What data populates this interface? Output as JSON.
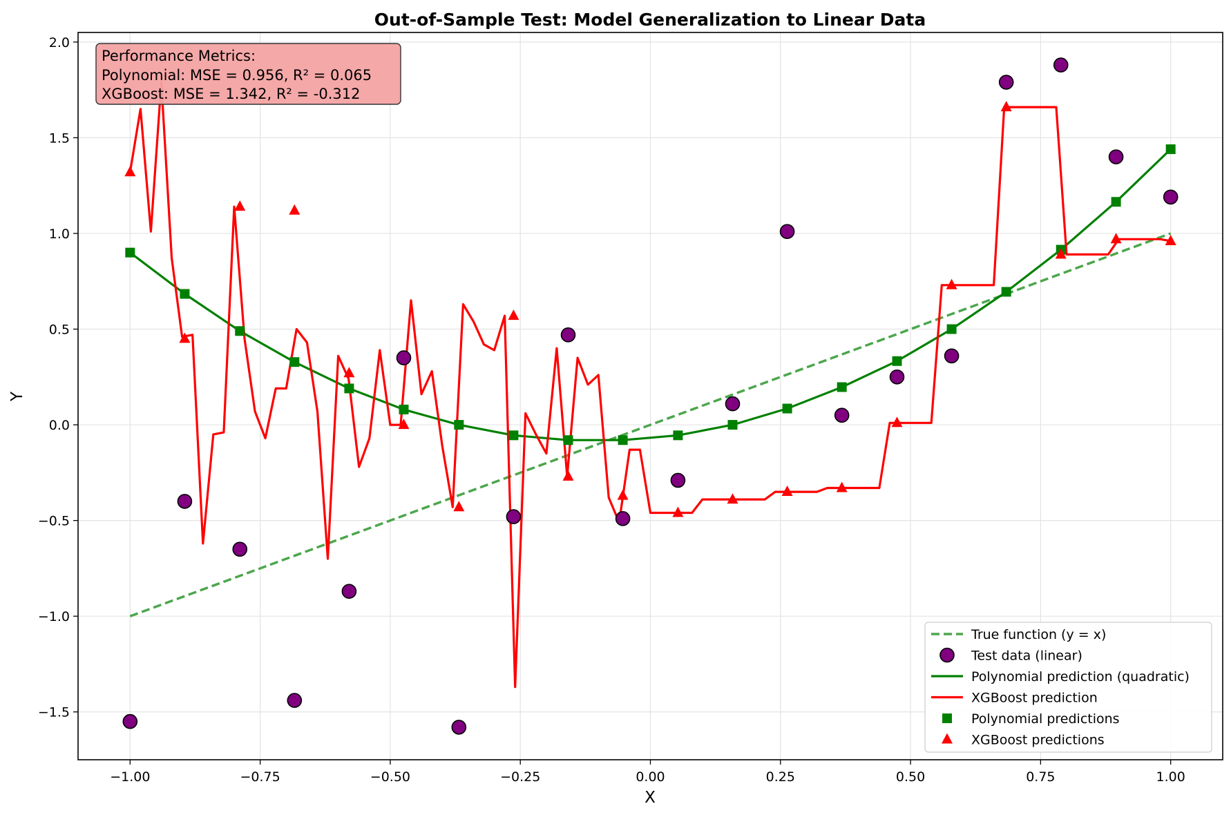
{
  "chart_data": {
    "type": "line",
    "title": "Out-of-Sample Test: Model Generalization to Linear Data",
    "xlabel": "X",
    "ylabel": "Y",
    "xlim": [
      -1.1,
      1.1
    ],
    "ylim": [
      -1.75,
      2.05
    ],
    "xticks": [
      -1.0,
      -0.75,
      -0.5,
      -0.25,
      0.0,
      0.25,
      0.5,
      0.75,
      1.0
    ],
    "xtick_labels": [
      "−1.00",
      "−0.75",
      "−0.50",
      "−0.25",
      "0.00",
      "0.25",
      "0.50",
      "0.75",
      "1.00"
    ],
    "yticks": [
      -1.5,
      -1.0,
      -0.5,
      0.0,
      0.5,
      1.0,
      1.5,
      2.0
    ],
    "ytick_labels": [
      "−1.5",
      "−1.0",
      "−0.5",
      "0.0",
      "0.5",
      "1.0",
      "1.5",
      "2.0"
    ],
    "grid": true,
    "legend_position": "lower right",
    "metrics_box": {
      "lines": [
        "Performance Metrics:",
        "Polynomial: MSE = 0.956, R² = 0.065",
        "XGBoost: MSE = 1.342, R² = -0.312"
      ],
      "background_color": "#f4a3a3"
    },
    "test_x": [
      -1.0,
      -0.895,
      -0.789,
      -0.684,
      -0.579,
      -0.474,
      -0.368,
      -0.263,
      -0.158,
      -0.053,
      0.053,
      0.158,
      0.263,
      0.368,
      0.474,
      0.579,
      0.684,
      0.789,
      0.895,
      1.0
    ],
    "series": [
      {
        "name": "True function (y = x)",
        "kind": "dashed-line",
        "color": "#4ca64c",
        "x": [
          -1.0,
          1.0
        ],
        "y": [
          -1.0,
          1.0
        ]
      },
      {
        "name": "Test data (linear)",
        "kind": "circle-markers",
        "color": "#800080",
        "y": [
          -1.55,
          -0.4,
          -0.65,
          -1.44,
          -0.87,
          0.35,
          -1.58,
          -0.48,
          0.47,
          -0.49,
          -0.29,
          0.11,
          1.01,
          0.05,
          0.25,
          0.36,
          1.79,
          1.88,
          1.4,
          1.19
        ]
      },
      {
        "name": "Polynomial prediction (quadratic)",
        "kind": "line",
        "color": "#008000",
        "y": [
          0.9,
          0.684,
          0.49,
          0.328,
          0.19,
          0.08,
          0.0,
          -0.055,
          -0.08,
          -0.08,
          -0.055,
          0.0,
          0.085,
          0.197,
          0.333,
          0.5,
          0.695,
          0.915,
          1.165,
          1.44
        ]
      },
      {
        "name": "XGBoost prediction",
        "kind": "line",
        "color": "#ff0000",
        "x": [
          -1.0,
          -0.98,
          -0.96,
          -0.94,
          -0.92,
          -0.9,
          -0.88,
          -0.86,
          -0.84,
          -0.82,
          -0.8,
          -0.78,
          -0.76,
          -0.74,
          -0.72,
          -0.7,
          -0.68,
          -0.66,
          -0.64,
          -0.62,
          -0.6,
          -0.58,
          -0.56,
          -0.54,
          -0.52,
          -0.5,
          -0.48,
          -0.46,
          -0.44,
          -0.42,
          -0.4,
          -0.38,
          -0.36,
          -0.34,
          -0.32,
          -0.3,
          -0.28,
          -0.26,
          -0.24,
          -0.22,
          -0.2,
          -0.18,
          -0.16,
          -0.14,
          -0.12,
          -0.1,
          -0.08,
          -0.06,
          -0.04,
          -0.02,
          0.0,
          0.02,
          0.04,
          0.06,
          0.08,
          0.1,
          0.12,
          0.14,
          0.16,
          0.18,
          0.2,
          0.22,
          0.24,
          0.26,
          0.28,
          0.3,
          0.32,
          0.34,
          0.36,
          0.38,
          0.4,
          0.42,
          0.44,
          0.46,
          0.48,
          0.5,
          0.52,
          0.54,
          0.56,
          0.58,
          0.6,
          0.62,
          0.64,
          0.66,
          0.68,
          0.7,
          0.72,
          0.74,
          0.76,
          0.78,
          0.8,
          0.82,
          0.84,
          0.86,
          0.88,
          0.9,
          0.92,
          0.94,
          0.96,
          0.98,
          1.0
        ],
        "y": [
          1.32,
          1.65,
          1.01,
          1.79,
          0.87,
          0.46,
          0.47,
          -0.62,
          -0.05,
          -0.04,
          1.14,
          0.45,
          0.07,
          -0.07,
          0.19,
          0.19,
          0.5,
          0.43,
          0.07,
          -0.7,
          0.36,
          0.24,
          -0.22,
          -0.07,
          0.39,
          0.0,
          0.0,
          0.65,
          0.16,
          0.28,
          -0.11,
          -0.43,
          0.63,
          0.54,
          0.42,
          0.39,
          0.57,
          -1.37,
          0.06,
          -0.05,
          -0.15,
          0.4,
          -0.27,
          0.35,
          0.21,
          0.26,
          -0.38,
          -0.51,
          -0.13,
          -0.13,
          -0.46,
          -0.46,
          -0.46,
          -0.46,
          -0.46,
          -0.39,
          -0.39,
          -0.39,
          -0.39,
          -0.39,
          -0.39,
          -0.39,
          -0.35,
          -0.35,
          -0.35,
          -0.35,
          -0.35,
          -0.33,
          -0.33,
          -0.33,
          -0.33,
          -0.33,
          -0.33,
          0.01,
          0.01,
          0.01,
          0.01,
          0.01,
          0.73,
          0.73,
          0.73,
          0.73,
          0.73,
          0.73,
          1.66,
          1.66,
          1.66,
          1.66,
          1.66,
          1.66,
          0.89,
          0.89,
          0.89,
          0.89,
          0.89,
          0.97,
          0.97,
          0.97,
          0.97,
          0.97,
          0.96
        ]
      },
      {
        "name": "Polynomial predictions",
        "kind": "square-markers",
        "color": "#008000",
        "y": [
          0.9,
          0.684,
          0.49,
          0.328,
          0.19,
          0.08,
          0.0,
          -0.055,
          -0.08,
          -0.08,
          -0.055,
          0.0,
          0.085,
          0.197,
          0.333,
          0.5,
          0.695,
          0.915,
          1.165,
          1.44
        ]
      },
      {
        "name": "XGBoost predictions",
        "kind": "triangle-markers",
        "color": "#ff0000",
        "y": [
          1.32,
          0.45,
          1.14,
          1.12,
          0.27,
          0.0,
          -0.43,
          0.57,
          -0.27,
          -0.37,
          -0.46,
          -0.39,
          -0.35,
          -0.33,
          0.01,
          0.73,
          1.66,
          0.89,
          0.97,
          0.96
        ]
      }
    ]
  }
}
